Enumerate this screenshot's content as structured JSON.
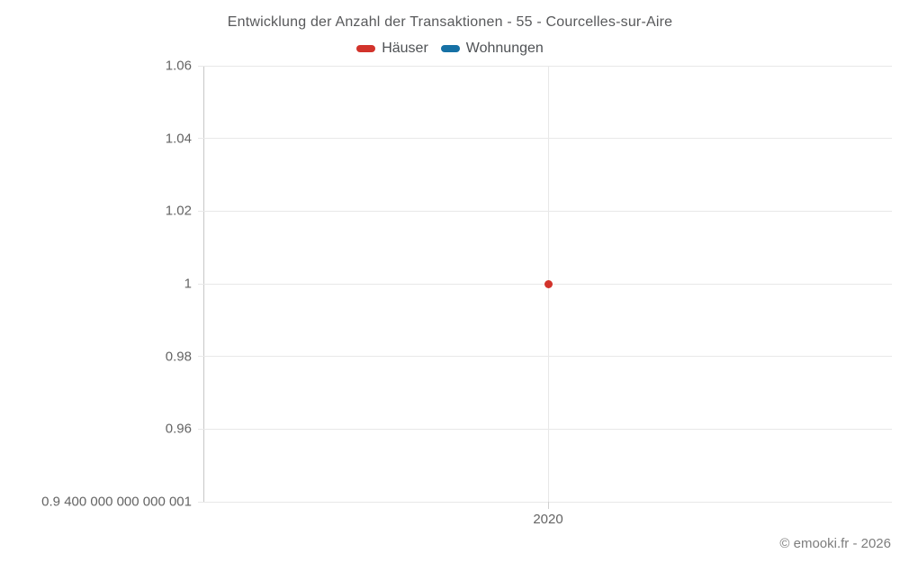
{
  "chart_data": {
    "type": "scatter",
    "title": "Entwicklung der Anzahl der Transaktionen - 55 - Courcelles-sur-Aire",
    "legend_position": "top",
    "grid": true,
    "legend": [
      {
        "name": "Häuser",
        "color": "#d2332b"
      },
      {
        "name": "Wohnungen",
        "color": "#1671a5"
      }
    ],
    "categories": [
      "2020"
    ],
    "xlabel": "",
    "ylabel": "",
    "ylim": [
      0.94,
      1.06
    ],
    "y_ticks": [
      {
        "value": 1.06,
        "label": "1.06"
      },
      {
        "value": 1.04,
        "label": "1.04"
      },
      {
        "value": 1.02,
        "label": "1.02"
      },
      {
        "value": 1.0,
        "label": "1"
      },
      {
        "value": 0.98,
        "label": "0.98"
      },
      {
        "value": 0.96,
        "label": "0.96"
      },
      {
        "value": 0.94,
        "label": "0.9 400 000 000 000 001"
      }
    ],
    "series": [
      {
        "name": "Häuser",
        "color": "#d2332b",
        "points": [
          {
            "x": "2020",
            "y": 1
          }
        ]
      },
      {
        "name": "Wohnungen",
        "color": "#1671a5",
        "points": []
      }
    ]
  },
  "footer": {
    "copyright": "© emooki.fr - 2026"
  }
}
